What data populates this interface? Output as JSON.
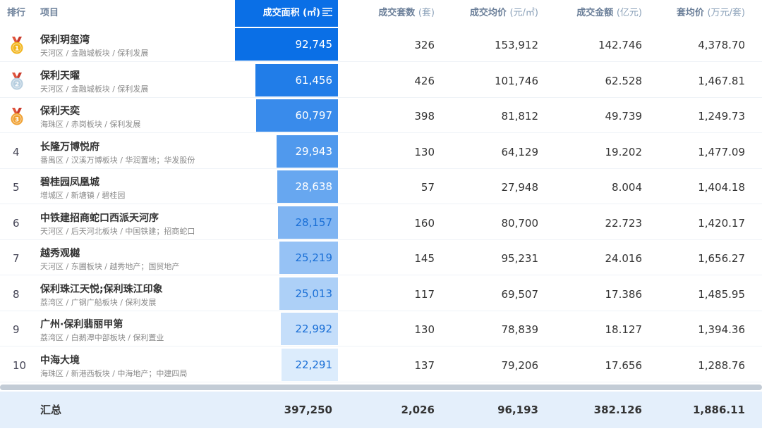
{
  "header": {
    "rank": "排行",
    "project": "项目",
    "area": "成交面积 (㎡)",
    "sets": "成交套数",
    "sets_unit": "(套)",
    "price": "成交均价",
    "price_unit": "(元/㎡)",
    "amount": "成交金额",
    "amount_unit": "(亿元)",
    "avg": "套均价",
    "avg_unit": "(万元/套)"
  },
  "colors": {
    "header_accent": "#0a6fe6",
    "gold_medal": "#f2b51c",
    "silver_medal": "#b8cfe0",
    "bronze_medal": "#f0a030"
  },
  "rows": [
    {
      "rank": "1",
      "medal": "gold",
      "name": "保利玥玺湾",
      "sub": "天河区 / 金融城板块 / 保利发展",
      "area": "92,745",
      "area_value": 92745,
      "sets": "326",
      "price": "153,912",
      "amount": "142.746",
      "avg": "4,378.70"
    },
    {
      "rank": "2",
      "medal": "silver",
      "name": "保利天曜",
      "sub": "天河区 / 金融城板块 / 保利发展",
      "area": "61,456",
      "area_value": 61456,
      "sets": "426",
      "price": "101,746",
      "amount": "62.528",
      "avg": "1,467.81"
    },
    {
      "rank": "3",
      "medal": "bronze",
      "name": "保利天奕",
      "sub": "海珠区 / 赤岗板块 / 保利发展",
      "area": "60,797",
      "area_value": 60797,
      "sets": "398",
      "price": "81,812",
      "amount": "49.739",
      "avg": "1,249.73"
    },
    {
      "rank": "4",
      "medal": "",
      "name": "长隆万博悦府",
      "sub": "番禺区 / 汉溪万博板块 / 华润置地；华发股份",
      "area": "29,943",
      "area_value": 29943,
      "sets": "130",
      "price": "64,129",
      "amount": "19.202",
      "avg": "1,477.09"
    },
    {
      "rank": "5",
      "medal": "",
      "name": "碧桂园凤凰城",
      "sub": "增城区 / 新塘镇 / 碧桂园",
      "area": "28,638",
      "area_value": 28638,
      "sets": "57",
      "price": "27,948",
      "amount": "8.004",
      "avg": "1,404.18"
    },
    {
      "rank": "6",
      "medal": "",
      "name": "中铁建招商蛇口西派天河序",
      "sub": "天河区 / 后天河北板块 / 中国铁建；招商蛇口",
      "area": "28,157",
      "area_value": 28157,
      "sets": "160",
      "price": "80,700",
      "amount": "22.723",
      "avg": "1,420.17"
    },
    {
      "rank": "7",
      "medal": "",
      "name": "越秀观樾",
      "sub": "天河区 / 东圃板块 / 越秀地产；国贸地产",
      "area": "25,219",
      "area_value": 25219,
      "sets": "145",
      "price": "95,231",
      "amount": "24.016",
      "avg": "1,656.27"
    },
    {
      "rank": "8",
      "medal": "",
      "name": "保利珠江天悦;保利珠江印象",
      "sub": "荔湾区 / 广钢广船板块 / 保利发展",
      "area": "25,013",
      "area_value": 25013,
      "sets": "117",
      "price": "69,507",
      "amount": "17.386",
      "avg": "1,485.95"
    },
    {
      "rank": "9",
      "medal": "",
      "name": "广州·保利翡丽甲第",
      "sub": "荔湾区 / 白鹅潭中部板块 / 保利置业",
      "area": "22,992",
      "area_value": 22992,
      "sets": "130",
      "price": "78,839",
      "amount": "18.127",
      "avg": "1,394.36"
    },
    {
      "rank": "10",
      "medal": "",
      "name": "中海大境",
      "sub": "海珠区 / 新港西板块 / 中海地产；中建四局",
      "area": "22,291",
      "area_value": 22291,
      "sets": "137",
      "price": "79,206",
      "amount": "17.656",
      "avg": "1,288.76"
    }
  ],
  "total": {
    "label": "汇总",
    "area": "397,250",
    "sets": "2,026",
    "price": "96,193",
    "amount": "382.126",
    "avg": "1,886.11"
  }
}
